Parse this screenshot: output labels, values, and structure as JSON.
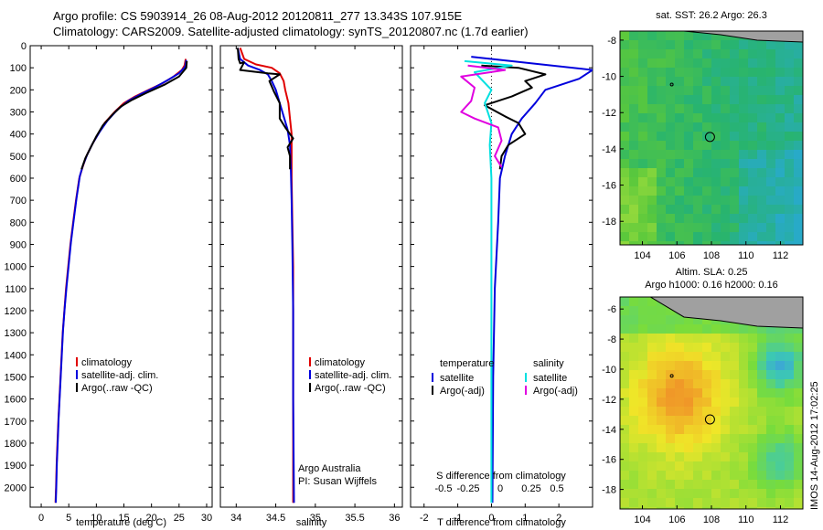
{
  "header": {
    "line1": "Argo profile: CS 5903914_26 08-Aug-2012 20120811_277 13.343S 107.915E",
    "line2": "Climatology: CARS2009. Satellite-adjusted climatology: synTS_20120807.nc (1.7d earlier)"
  },
  "side_label": "IMOS 14-Aug-2012 17:02:25",
  "depth_axis": {
    "ticks": [
      0,
      100,
      200,
      300,
      400,
      500,
      600,
      700,
      800,
      900,
      1000,
      1100,
      1200,
      1300,
      1400,
      1500,
      1600,
      1700,
      1800,
      1900,
      2000
    ],
    "range": [
      0,
      2090
    ]
  },
  "colors": {
    "climatology": "#e00000",
    "satellite": "#0000dd",
    "argo": "#000000",
    "salinity_satellite": "#00e0e0",
    "salinity_argo": "#e000e0"
  },
  "chart_data": [
    {
      "type": "line",
      "xlabel": "temperature (deg C)",
      "ylabel": "",
      "xlim": [
        -2,
        31
      ],
      "ylim": [
        2090,
        0
      ],
      "xticks": [
        0,
        5,
        10,
        15,
        20,
        25,
        30
      ],
      "legend": [
        "climatology",
        "satellite-adj. clim.",
        "Argo(..raw -QC)"
      ],
      "legend_position": "lower-middle",
      "series": [
        {
          "name": "climatology",
          "color_key": "climatology",
          "points": [
            [
              26.2,
              60
            ],
            [
              26.0,
              90
            ],
            [
              25.5,
              110
            ],
            [
              24.0,
              140
            ],
            [
              22.0,
              170
            ],
            [
              19.5,
              200
            ],
            [
              17.0,
              230
            ],
            [
              15.0,
              260
            ],
            [
              13.3,
              300
            ],
            [
              11.5,
              350
            ],
            [
              10.3,
              400
            ],
            [
              9.2,
              450
            ],
            [
              8.2,
              500
            ],
            [
              7.5,
              550
            ],
            [
              6.9,
              600
            ],
            [
              6.3,
              700
            ],
            [
              5.8,
              800
            ],
            [
              5.3,
              900
            ],
            [
              4.9,
              1000
            ],
            [
              4.5,
              1100
            ],
            [
              4.2,
              1200
            ],
            [
              3.9,
              1300
            ],
            [
              3.7,
              1400
            ],
            [
              3.5,
              1500
            ],
            [
              3.3,
              1600
            ],
            [
              3.1,
              1700
            ],
            [
              2.95,
              1800
            ],
            [
              2.8,
              1900
            ],
            [
              2.7,
              2000
            ],
            [
              2.6,
              2070
            ]
          ]
        },
        {
          "name": "satellite-adj. clim.",
          "color_key": "satellite",
          "points": [
            [
              26.3,
              65
            ],
            [
              26.1,
              95
            ],
            [
              25.0,
              125
            ],
            [
              23.0,
              155
            ],
            [
              20.5,
              190
            ],
            [
              18.0,
              220
            ],
            [
              15.8,
              250
            ],
            [
              13.8,
              290
            ],
            [
              12.0,
              340
            ],
            [
              10.6,
              390
            ],
            [
              9.4,
              440
            ],
            [
              8.4,
              490
            ],
            [
              7.6,
              540
            ],
            [
              7.0,
              590
            ],
            [
              6.4,
              690
            ],
            [
              5.9,
              790
            ],
            [
              5.4,
              890
            ],
            [
              5.0,
              990
            ],
            [
              4.6,
              1090
            ],
            [
              4.25,
              1190
            ],
            [
              3.95,
              1290
            ],
            [
              3.75,
              1390
            ],
            [
              3.55,
              1490
            ],
            [
              3.35,
              1590
            ],
            [
              3.15,
              1690
            ],
            [
              3.0,
              1790
            ],
            [
              2.85,
              1890
            ],
            [
              2.75,
              1990
            ],
            [
              2.65,
              2070
            ]
          ]
        },
        {
          "name": "Argo(..raw -QC)",
          "color_key": "argo",
          "points": [
            [
              26.4,
              70
            ],
            [
              26.3,
              100
            ],
            [
              25.0,
              140
            ],
            [
              22.5,
              175
            ],
            [
              19.0,
              215
            ],
            [
              16.5,
              245
            ],
            [
              14.5,
              275
            ],
            [
              13.0,
              310
            ],
            [
              11.2,
              360
            ],
            [
              10.0,
              410
            ],
            [
              9.0,
              460
            ],
            [
              8.0,
              510
            ],
            [
              7.3,
              560
            ]
          ]
        }
      ]
    },
    {
      "type": "line",
      "xlabel": "salinity",
      "xlim": [
        33.8,
        36.1
      ],
      "ylim": [
        2090,
        0
      ],
      "xticks": [
        34,
        34.5,
        35,
        35.5,
        36
      ],
      "legend": [
        "climatology",
        "satellite-adj. clim.",
        "Argo(..raw -QC)"
      ],
      "legend_position": "lower-right",
      "annotation": [
        "Argo Australia",
        "PI: Susan Wijffels"
      ],
      "series": [
        {
          "name": "climatology",
          "color_key": "climatology",
          "points": [
            [
              34.05,
              10
            ],
            [
              34.1,
              60
            ],
            [
              34.25,
              85
            ],
            [
              34.45,
              100
            ],
            [
              34.55,
              125
            ],
            [
              34.6,
              160
            ],
            [
              34.62,
              200
            ],
            [
              34.66,
              260
            ],
            [
              34.68,
              330
            ],
            [
              34.7,
              400
            ],
            [
              34.7,
              500
            ],
            [
              34.7,
              600
            ],
            [
              34.71,
              800
            ],
            [
              34.72,
              1000
            ],
            [
              34.72,
              1500
            ],
            [
              34.72,
              2070
            ]
          ]
        },
        {
          "name": "satellite-adj. clim.",
          "color_key": "satellite",
          "points": [
            [
              34.02,
              10
            ],
            [
              34.05,
              60
            ],
            [
              34.15,
              90
            ],
            [
              34.3,
              110
            ],
            [
              34.4,
              130
            ],
            [
              34.45,
              160
            ],
            [
              34.5,
              200
            ],
            [
              34.55,
              260
            ],
            [
              34.6,
              320
            ],
            [
              34.65,
              380
            ],
            [
              34.68,
              450
            ],
            [
              34.69,
              550
            ],
            [
              34.7,
              700
            ],
            [
              34.71,
              900
            ],
            [
              34.72,
              1200
            ],
            [
              34.72,
              1600
            ],
            [
              34.73,
              2070
            ]
          ]
        },
        {
          "name": "Argo(..raw -QC)",
          "color_key": "argo",
          "points": [
            [
              34.02,
              10
            ],
            [
              34.03,
              60
            ],
            [
              34.05,
              80
            ],
            [
              34.1,
              75
            ],
            [
              34.05,
              110
            ],
            [
              34.4,
              125
            ],
            [
              34.55,
              130
            ],
            [
              34.42,
              160
            ],
            [
              34.48,
              210
            ],
            [
              34.55,
              260
            ],
            [
              34.55,
              330
            ],
            [
              34.62,
              370
            ],
            [
              34.72,
              420
            ],
            [
              34.65,
              460
            ],
            [
              34.68,
              500
            ],
            [
              34.68,
              560
            ]
          ]
        }
      ]
    },
    {
      "type": "line",
      "xlabel": "T difference from climatology",
      "xlabel_top": "S difference from climatology",
      "xlim": [
        -2.4,
        3.0
      ],
      "ylim": [
        2090,
        0
      ],
      "xticks": [
        -2,
        -1,
        0,
        1,
        2
      ],
      "xticks_top": [
        "-0.5",
        "-0.25",
        "0",
        "0.25",
        "0.5"
      ],
      "legend_left_title": "temperature",
      "legend_right_title": "salinity",
      "legend": [
        "satellite",
        "Argo(-adj)",
        "satellite",
        "Argo(-adj)"
      ],
      "legend_position": "lower",
      "series": [
        {
          "name": "satellite",
          "group": "temperature",
          "color_key": "satellite",
          "points": [
            [
              -0.6,
              50
            ],
            [
              3.0,
              110
            ],
            [
              2.6,
              150
            ],
            [
              1.6,
              200
            ],
            [
              1.3,
              260
            ],
            [
              0.9,
              330
            ],
            [
              0.6,
              400
            ],
            [
              0.4,
              500
            ],
            [
              0.25,
              600
            ],
            [
              0.2,
              800
            ],
            [
              0.1,
              1100
            ],
            [
              0.05,
              1500
            ],
            [
              0.03,
              2070
            ]
          ]
        },
        {
          "name": "Argo(-adj)",
          "group": "temperature",
          "color_key": "argo",
          "points": [
            [
              -0.3,
              90
            ],
            [
              0.8,
              100
            ],
            [
              1.6,
              130
            ],
            [
              1.0,
              160
            ],
            [
              1.2,
              190
            ],
            [
              0.6,
              230
            ],
            [
              -0.2,
              270
            ],
            [
              0.4,
              320
            ],
            [
              0.8,
              350
            ],
            [
              1.0,
              400
            ],
            [
              0.5,
              450
            ],
            [
              0.3,
              500
            ],
            [
              0.25,
              560
            ]
          ]
        },
        {
          "name": "satellite",
          "group": "salinity",
          "color_key": "salinity_satellite",
          "points": [
            [
              -0.8,
              70
            ],
            [
              0.6,
              90
            ],
            [
              -0.5,
              120
            ],
            [
              0.0,
              200
            ],
            [
              -0.2,
              260
            ],
            [
              0.0,
              350
            ],
            [
              -0.05,
              450
            ],
            [
              0.0,
              600
            ],
            [
              0.0,
              1000
            ],
            [
              0.0,
              2070
            ]
          ]
        },
        {
          "name": "Argo(-adj)",
          "group": "salinity",
          "color_key": "salinity_argo",
          "points": [
            [
              -0.7,
              90
            ],
            [
              0.4,
              110
            ],
            [
              -0.9,
              140
            ],
            [
              -0.5,
              190
            ],
            [
              -0.6,
              250
            ],
            [
              -0.9,
              300
            ],
            [
              -0.5,
              330
            ],
            [
              0.2,
              370
            ],
            [
              0.3,
              430
            ],
            [
              0.1,
              500
            ],
            [
              0.3,
              550
            ]
          ]
        }
      ]
    }
  ],
  "maps": [
    {
      "title": "sat. SST: 26.2 Argo: 26.3",
      "lon_ticks": [
        104,
        106,
        108,
        110,
        112
      ],
      "lat_ticks": [
        -8,
        -10,
        -12,
        -14,
        -16,
        -18
      ],
      "lon_range": [
        102.7,
        113.3
      ],
      "lat_range": [
        -19.3,
        -7.5
      ],
      "float_position": [
        107.915,
        -13.343
      ],
      "colorscale": "sst"
    },
    {
      "title_line1": "Altim. SLA: 0.25",
      "title_line2": "Argo h1000: 0.16 h2000: 0.16",
      "lon_ticks": [
        104,
        106,
        108,
        110,
        112
      ],
      "lat_ticks": [
        -6,
        -8,
        -10,
        -12,
        -14,
        -16,
        -18
      ],
      "lon_range": [
        102.7,
        113.3
      ],
      "lat_range": [
        -19.3,
        -5.2
      ],
      "float_position": [
        107.915,
        -13.343
      ],
      "colorscale": "sla"
    }
  ]
}
